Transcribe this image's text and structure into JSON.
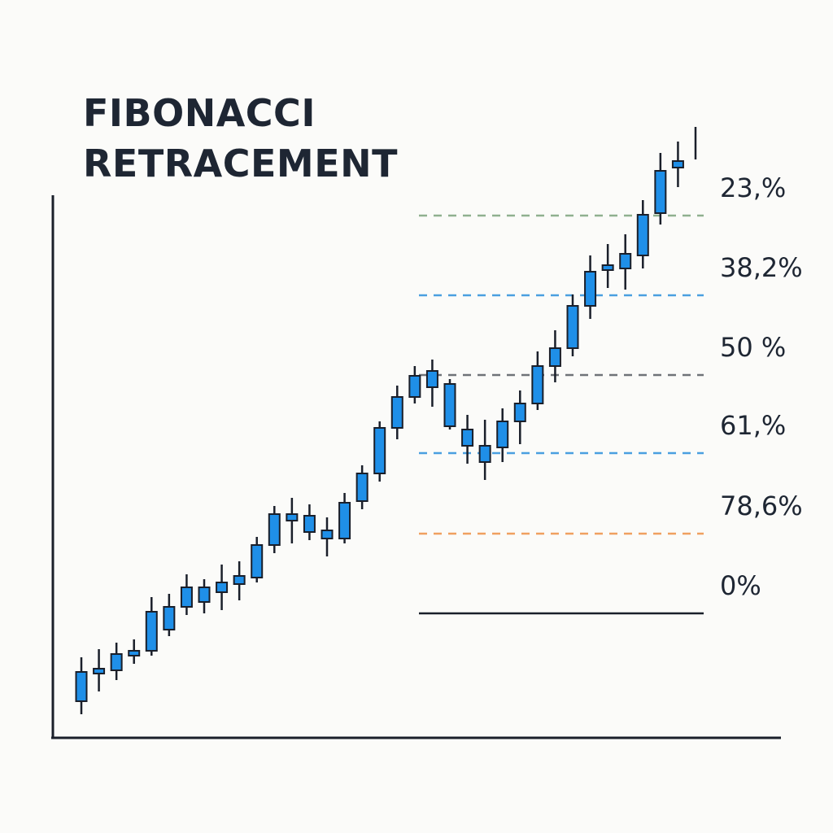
{
  "chart_data": {
    "type": "candlestick",
    "title": "FIBONACCI RETRACEMENT",
    "ylim": [
      0,
      665
    ],
    "candle_color": "#1f8fe8",
    "outline_color": "#1a1f2a",
    "open": [
      43,
      77,
      81,
      99,
      105,
      131,
      159,
      165,
      177,
      187,
      195,
      235,
      265,
      251,
      243,
      243,
      289,
      323,
      379,
      417,
      429,
      381,
      357,
      337,
      355,
      387,
      409,
      455,
      477,
      529,
      573,
      575,
      591,
      643,
      699,
      null
    ],
    "close": [
      79,
      83,
      101,
      105,
      153,
      159,
      183,
      183,
      189,
      197,
      235,
      273,
      273,
      271,
      253,
      287,
      323,
      379,
      417,
      443,
      449,
      433,
      377,
      357,
      387,
      409,
      455,
      477,
      529,
      571,
      579,
      593,
      641,
      695,
      707,
      null
    ],
    "high": [
      97,
      107,
      115,
      119,
      171,
      175,
      199,
      193,
      211,
      215,
      245,
      283,
      293,
      285,
      269,
      299,
      333,
      387,
      431,
      455,
      463,
      439,
      395,
      389,
      403,
      425,
      473,
      499,
      543,
      591,
      605,
      617,
      659,
      717,
      731,
      749
    ],
    "low": [
      27,
      55,
      69,
      89,
      99,
      123,
      149,
      151,
      155,
      167,
      189,
      225,
      237,
      241,
      221,
      237,
      279,
      313,
      365,
      409,
      405,
      377,
      335,
      315,
      337,
      359,
      401,
      435,
      467,
      513,
      551,
      549,
      575,
      629,
      675,
      709
    ],
    "levels": [
      {
        "label": "23,%",
        "value": 640,
        "color": "#8fb08f",
        "style": "dashed"
      },
      {
        "label": "38,2%",
        "value": 542,
        "color": "#4a9fe0",
        "style": "dashed"
      },
      {
        "label": "50 %",
        "value": 444,
        "color": "#6f7378",
        "style": "dashed"
      },
      {
        "label": "61,%",
        "value": 348,
        "color": "#4a9fe0",
        "style": "dashed"
      },
      {
        "label": "78,6%",
        "value": 249,
        "color": "#f0a060",
        "style": "dashed"
      },
      {
        "label": "0%",
        "value": 151,
        "color": "#1a1f2a",
        "style": "solid"
      }
    ]
  }
}
